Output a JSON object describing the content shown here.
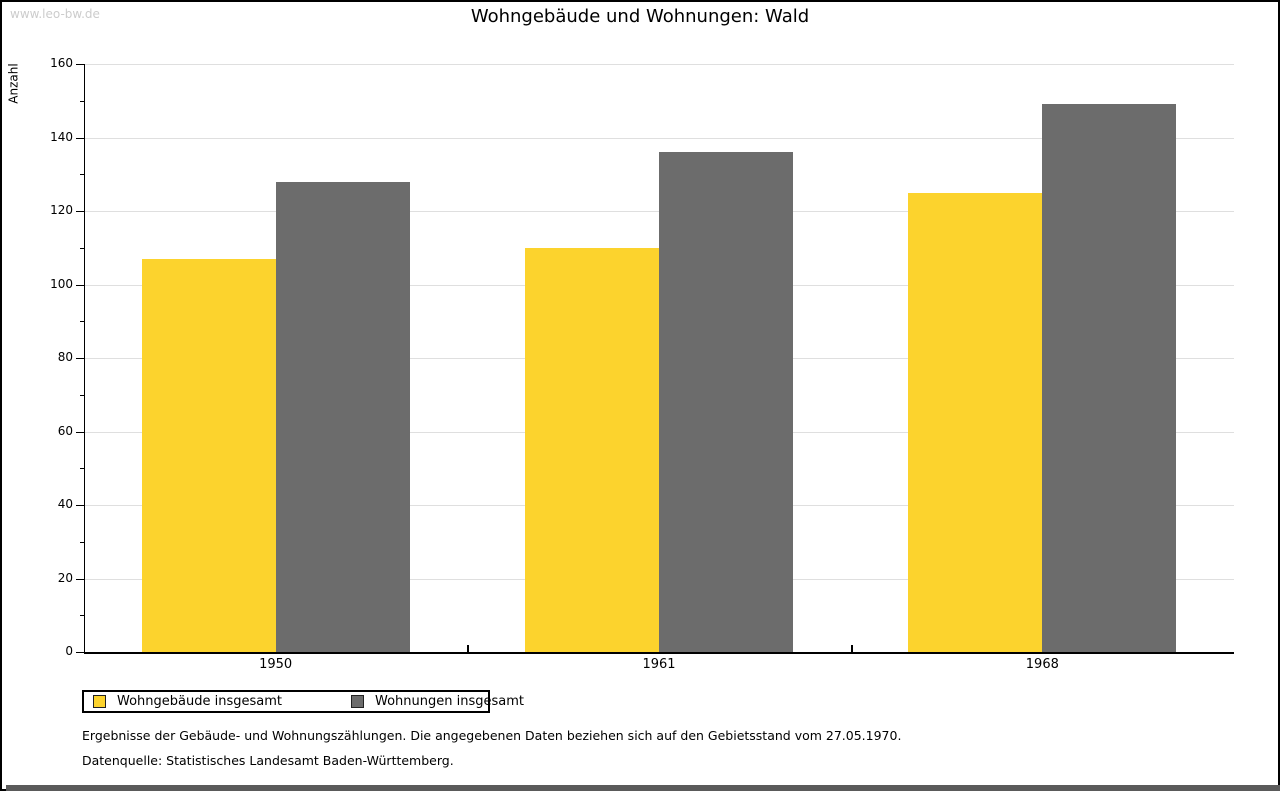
{
  "watermark": "www.leo-bw.de",
  "chart_data": {
    "type": "bar",
    "title": "Wohngebäude und Wohnungen: Wald",
    "ylabel": "Anzahl",
    "xlabel": "",
    "categories": [
      "1950",
      "1961",
      "1968"
    ],
    "series": [
      {
        "name": "Wohngebäude insgesamt",
        "color": "#fcd32d",
        "values": [
          107,
          110,
          125
        ]
      },
      {
        "name": "Wohnungen insgesamt",
        "color": "#6c6c6c",
        "values": [
          128,
          136,
          149
        ]
      }
    ],
    "ylim": [
      0,
      160
    ],
    "ytick_step": 20,
    "yminor_step": 10,
    "grid": true,
    "legend_position": "bottom-left"
  },
  "footnotes": {
    "line1": "Ergebnisse der Gebäude- und Wohnungszählungen. Die angegebenen Daten beziehen sich auf den Gebietsstand vom 27.05.1970.",
    "line2": "Datenquelle: Statistisches Landesamt Baden-Württemberg."
  }
}
